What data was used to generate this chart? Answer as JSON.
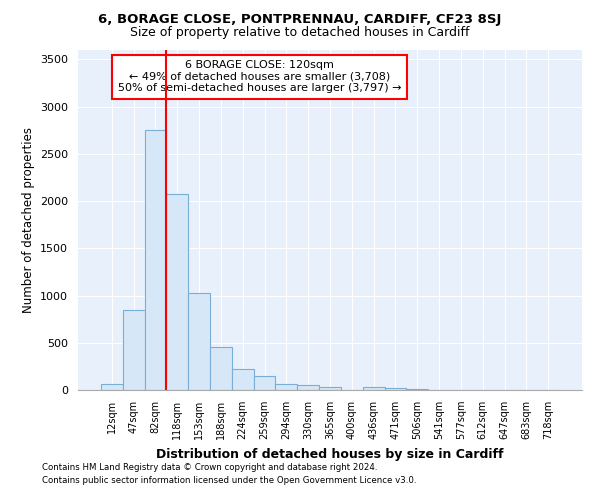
{
  "title1": "6, BORAGE CLOSE, PONTPRENNAU, CARDIFF, CF23 8SJ",
  "title2": "Size of property relative to detached houses in Cardiff",
  "xlabel": "Distribution of detached houses by size in Cardiff",
  "ylabel": "Number of detached properties",
  "bar_labels": [
    "12sqm",
    "47sqm",
    "82sqm",
    "118sqm",
    "153sqm",
    "188sqm",
    "224sqm",
    "259sqm",
    "294sqm",
    "330sqm",
    "365sqm",
    "400sqm",
    "436sqm",
    "471sqm",
    "506sqm",
    "541sqm",
    "577sqm",
    "612sqm",
    "647sqm",
    "683sqm",
    "718sqm"
  ],
  "bar_values": [
    60,
    850,
    2750,
    2080,
    1030,
    460,
    220,
    145,
    60,
    50,
    35,
    0,
    35,
    25,
    15,
    5,
    3,
    0,
    0,
    0,
    0
  ],
  "bar_color": "#d6e8f7",
  "bar_edge_color": "#7aaed6",
  "vline_x_index": 3,
  "vline_color": "red",
  "annotation_text": "6 BORAGE CLOSE: 120sqm\n← 49% of detached houses are smaller (3,708)\n50% of semi-detached houses are larger (3,797) →",
  "annotation_box_color": "white",
  "annotation_box_edgecolor": "red",
  "ylim": [
    0,
    3600
  ],
  "yticks": [
    0,
    500,
    1000,
    1500,
    2000,
    2500,
    3000,
    3500
  ],
  "bg_color": "#e8f0fb",
  "footer_line1": "Contains HM Land Registry data © Crown copyright and database right 2024.",
  "footer_line2": "Contains public sector information licensed under the Open Government Licence v3.0."
}
